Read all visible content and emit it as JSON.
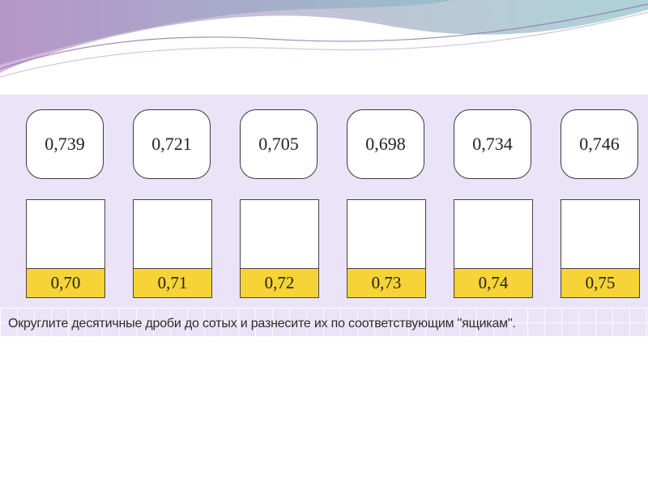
{
  "cards": [
    {
      "value": "0,739"
    },
    {
      "value": "0,721"
    },
    {
      "value": "0,705"
    },
    {
      "value": "0,698"
    },
    {
      "value": "0,734"
    },
    {
      "value": "0,746"
    }
  ],
  "boxes": [
    {
      "label": "0,70"
    },
    {
      "label": "0,71"
    },
    {
      "label": "0,72"
    },
    {
      "label": "0,73"
    },
    {
      "label": "0,74"
    },
    {
      "label": "0,75"
    }
  ],
  "instruction": "Округлите десятичные дроби до сотых и разнесите их по соответствующим \"ящикам\".",
  "colors": {
    "panel_background": "#ebe3f7",
    "box_label_fill": "#f6d336",
    "card_border": "#3a3a3a"
  }
}
